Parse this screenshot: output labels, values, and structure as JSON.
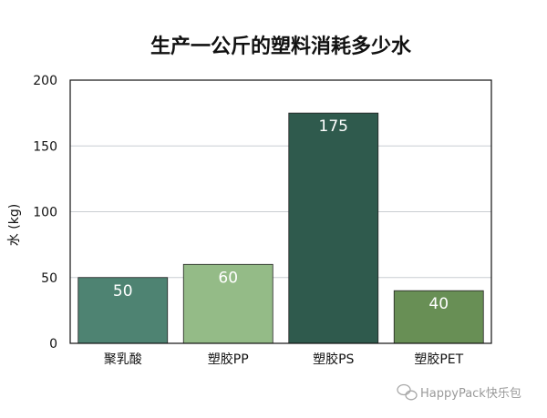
{
  "chart_data": {
    "type": "bar",
    "title": "生产一公斤的塑料消耗多少水",
    "ylabel": "水 (kg)",
    "xlabel": "",
    "categories": [
      "聚乳酸",
      "塑胶PP",
      "塑胶PS",
      "塑胶PET"
    ],
    "values": [
      50,
      60,
      175,
      40
    ],
    "data_labels": [
      "50",
      "60",
      "175",
      "40"
    ],
    "colors": [
      "#4e8372",
      "#94bb87",
      "#2f5a4d",
      "#688f55"
    ],
    "ylim": [
      0,
      200
    ],
    "yticks": [
      0,
      50,
      100,
      150,
      200
    ],
    "grid": true,
    "legend": "none"
  },
  "watermark": {
    "text": "HappyPack快乐包",
    "icon": "wechat-icon"
  }
}
